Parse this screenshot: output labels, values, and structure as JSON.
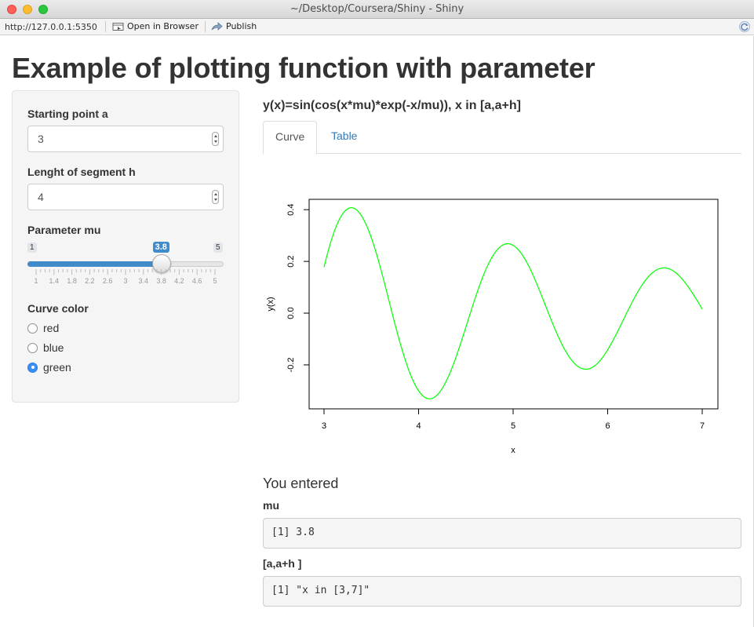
{
  "window": {
    "title": "~/Desktop/Coursera/Shiny - Shiny"
  },
  "toolbar": {
    "url": "http://127.0.0.1:5350",
    "open_in_browser": "Open in Browser",
    "publish": "Publish"
  },
  "page": {
    "title": "Example of plotting function with parameter"
  },
  "sidebar": {
    "start_label": "Starting point a",
    "start_value": "3",
    "length_label": "Lenght of segment h",
    "length_value": "4",
    "mu_label": "Parameter mu",
    "slider": {
      "min_label": "1",
      "max_label": "5",
      "current_label": "3.8",
      "value": 3.8,
      "min": 1,
      "max": 5,
      "tick_labels": [
        "1",
        "1.4",
        "1.8",
        "2.2",
        "2.6",
        "3",
        "3.4",
        "3.8",
        "4.2",
        "4.6",
        "5"
      ]
    },
    "color_label": "Curve color",
    "color_options": [
      "red",
      "blue",
      "green"
    ],
    "color_selected": "green"
  },
  "main": {
    "formula": "y(x)=sin(cos(x*mu)*exp(-x/mu)), x in [a,a+h]",
    "tabs": [
      "Curve",
      "Table"
    ],
    "active_tab": "Curve",
    "section_title": "You entered",
    "mu_label": "mu",
    "mu_output": "[1] 3.8",
    "range_label": "[a,a+h ]",
    "range_output": "[1] \"x in [3,7]\""
  },
  "chart_data": {
    "type": "line",
    "xlabel": "x",
    "ylabel": "y(x)",
    "xlim": [
      3,
      7
    ],
    "ylim": [
      -0.37,
      0.44
    ],
    "x_ticks": [
      "3",
      "4",
      "5",
      "6",
      "7"
    ],
    "y_ticks": [
      "-0.2",
      "0.0",
      "0.2",
      "0.4"
    ],
    "function": {
      "mu": 3.8,
      "a": 3,
      "b": 7
    },
    "color": "#00ff00",
    "grid": false
  }
}
